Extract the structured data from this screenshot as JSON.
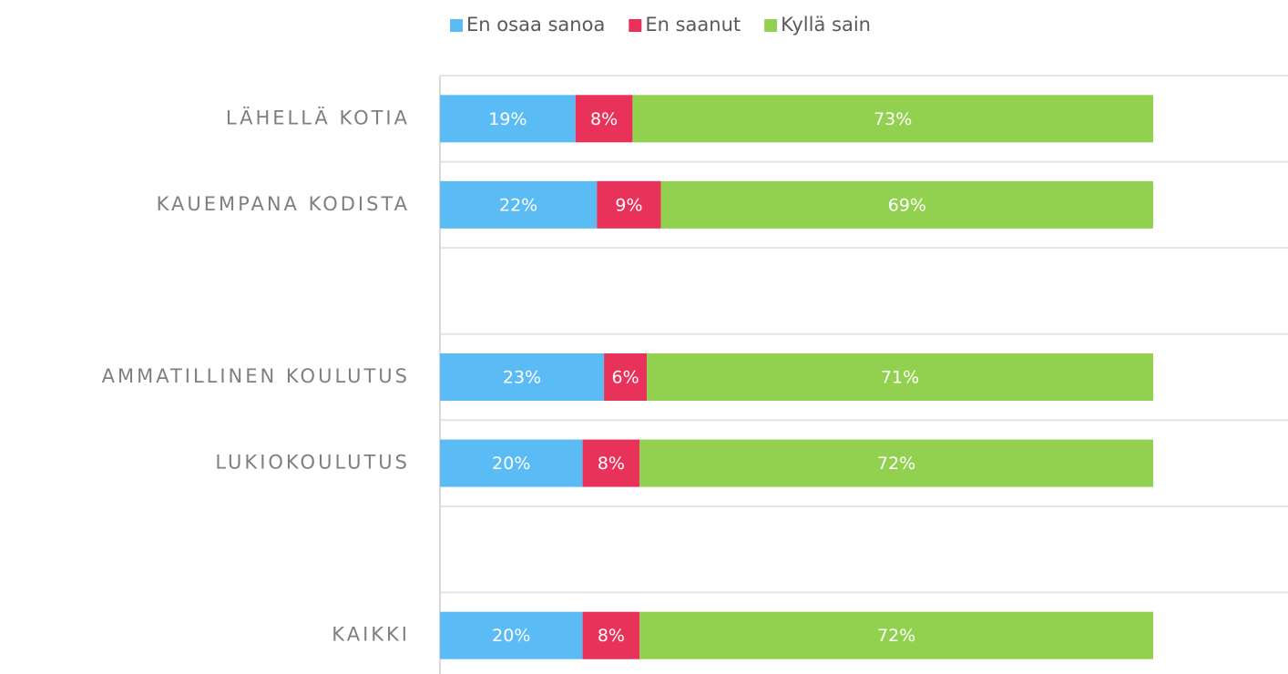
{
  "chart_data": {
    "type": "stacked-bar-horizontal",
    "categories": [
      "LÄHELLÄ KOTIA",
      "KAUEMPANA KODISTA",
      null,
      "AMMATILLINEN KOULUTUS",
      "LUKIOKOULUTUS",
      null,
      "KAIKKI"
    ],
    "xlim": [
      0,
      100
    ],
    "series": [
      {
        "name": "En osaa sanoa",
        "color": "#5bbcf5",
        "values": [
          19,
          22,
          null,
          23,
          20,
          null,
          20
        ],
        "value_labels": [
          "19%",
          "22%",
          null,
          "23%",
          "20%",
          null,
          "20%"
        ]
      },
      {
        "name": "En saanut",
        "color": "#e8325a",
        "values": [
          8,
          9,
          null,
          6,
          8,
          null,
          8
        ],
        "value_labels": [
          "8%",
          "9%",
          null,
          "6%",
          "8%",
          null,
          "8%"
        ]
      },
      {
        "name": "Kyllä sain",
        "color": "#92d050",
        "values": [
          73,
          69,
          null,
          71,
          72,
          null,
          72
        ],
        "value_labels": [
          "73%",
          "69%",
          null,
          "71%",
          "72%",
          null,
          "72%"
        ]
      }
    ],
    "legend": "top"
  }
}
